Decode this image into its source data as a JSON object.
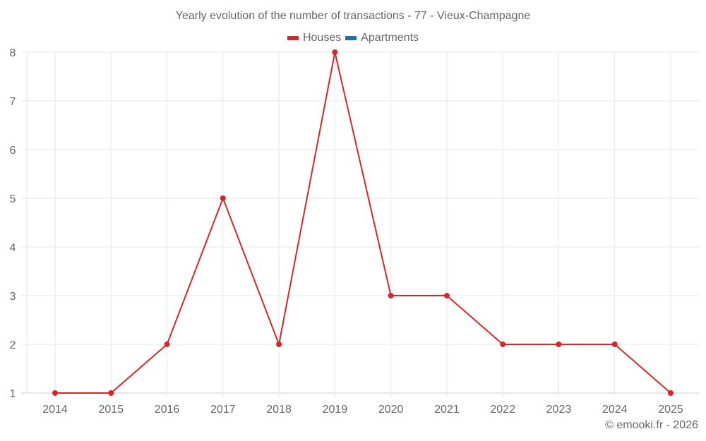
{
  "header": {
    "title": "Yearly evolution of the number of transactions - 77 - Vieux-Champagne"
  },
  "legend": [
    {
      "label": "Houses",
      "color": "#d62728"
    },
    {
      "label": "Apartments",
      "color": "#1f6fa8"
    }
  ],
  "footer": {
    "credit": "© emooki.fr - 2026"
  },
  "colors": {
    "houses": "#d62728",
    "apartments": "#1f6fa8",
    "grid": "#e6e6e6",
    "axis": "#cccccc",
    "text": "#666666"
  },
  "chart_data": {
    "type": "line",
    "title": "Yearly evolution of the number of transactions - 77 - Vieux-Champagne",
    "xlabel": "",
    "ylabel": "",
    "categories": [
      "2014",
      "2015",
      "2016",
      "2017",
      "2018",
      "2019",
      "2020",
      "2021",
      "2022",
      "2023",
      "2024",
      "2025"
    ],
    "series": [
      {
        "name": "Houses",
        "color": "#d62728",
        "values": [
          1,
          1,
          2,
          5,
          2,
          8,
          3,
          3,
          2,
          2,
          2,
          1
        ]
      },
      {
        "name": "Apartments",
        "color": "#1f6fa8",
        "values": []
      }
    ],
    "yticks": [
      1,
      2,
      3,
      4,
      5,
      6,
      7,
      8
    ],
    "ylim": [
      1,
      8
    ],
    "grid": true,
    "legend_position": "top-center"
  }
}
